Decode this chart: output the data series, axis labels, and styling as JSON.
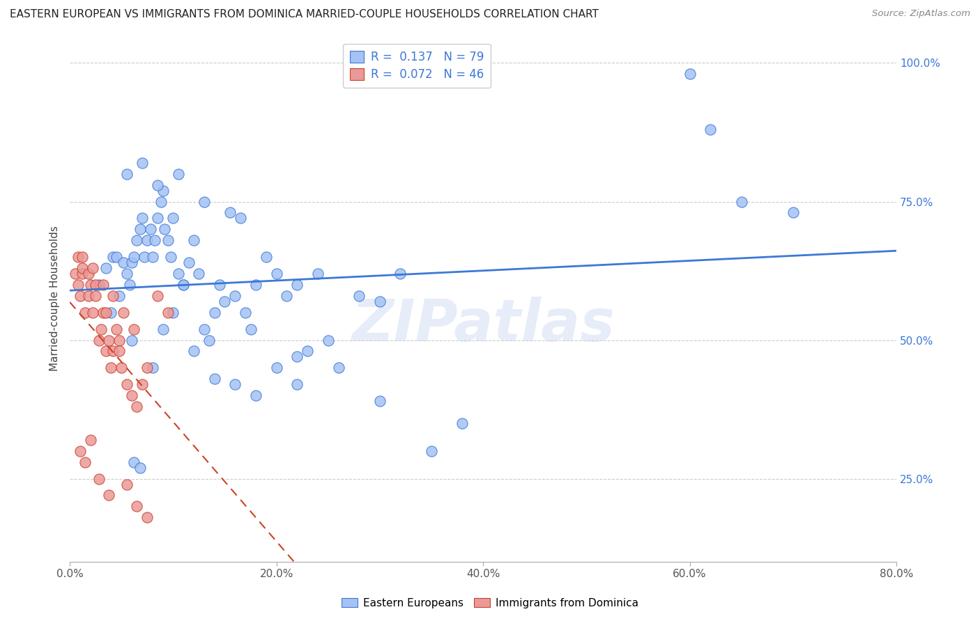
{
  "title": "EASTERN EUROPEAN VS IMMIGRANTS FROM DOMINICA MARRIED-COUPLE HOUSEHOLDS CORRELATION CHART",
  "source": "Source: ZipAtlas.com",
  "ylabel_label": "Married-couple Households",
  "legend_label1": "Eastern Europeans",
  "legend_label2": "Immigrants from Dominica",
  "R1": "0.137",
  "N1": "79",
  "R2": "0.072",
  "N2": "46",
  "color_blue": "#a4c2f4",
  "color_pink": "#ea9999",
  "color_line_blue": "#3c78d8",
  "color_line_pink": "#cc4125",
  "watermark": "ZIPatlas",
  "blue_x": [
    0.028,
    0.035,
    0.042,
    0.045,
    0.048,
    0.052,
    0.055,
    0.058,
    0.06,
    0.062,
    0.065,
    0.068,
    0.07,
    0.072,
    0.075,
    0.078,
    0.08,
    0.082,
    0.085,
    0.088,
    0.09,
    0.092,
    0.095,
    0.098,
    0.1,
    0.105,
    0.11,
    0.115,
    0.12,
    0.125,
    0.13,
    0.135,
    0.14,
    0.145,
    0.15,
    0.16,
    0.17,
    0.175,
    0.18,
    0.19,
    0.2,
    0.21,
    0.22,
    0.23,
    0.24,
    0.25,
    0.28,
    0.3,
    0.32,
    0.35,
    0.04,
    0.06,
    0.08,
    0.1,
    0.12,
    0.14,
    0.16,
    0.18,
    0.2,
    0.22,
    0.055,
    0.07,
    0.085,
    0.105,
    0.13,
    0.155,
    0.165,
    0.22,
    0.26,
    0.3,
    0.062,
    0.068,
    0.09,
    0.11,
    0.38,
    0.6,
    0.62,
    0.65,
    0.7
  ],
  "blue_y": [
    0.6,
    0.63,
    0.65,
    0.65,
    0.58,
    0.64,
    0.62,
    0.6,
    0.64,
    0.65,
    0.68,
    0.7,
    0.72,
    0.65,
    0.68,
    0.7,
    0.65,
    0.68,
    0.72,
    0.75,
    0.77,
    0.7,
    0.68,
    0.65,
    0.72,
    0.62,
    0.6,
    0.64,
    0.68,
    0.62,
    0.52,
    0.5,
    0.55,
    0.6,
    0.57,
    0.58,
    0.55,
    0.52,
    0.6,
    0.65,
    0.62,
    0.58,
    0.47,
    0.48,
    0.62,
    0.5,
    0.58,
    0.57,
    0.62,
    0.3,
    0.55,
    0.5,
    0.45,
    0.55,
    0.48,
    0.43,
    0.42,
    0.4,
    0.45,
    0.42,
    0.8,
    0.82,
    0.78,
    0.8,
    0.75,
    0.73,
    0.72,
    0.6,
    0.45,
    0.39,
    0.28,
    0.27,
    0.52,
    0.6,
    0.35,
    0.98,
    0.88,
    0.75,
    0.73
  ],
  "pink_x": [
    0.005,
    0.008,
    0.01,
    0.012,
    0.015,
    0.018,
    0.02,
    0.022,
    0.025,
    0.028,
    0.03,
    0.032,
    0.035,
    0.038,
    0.04,
    0.042,
    0.045,
    0.048,
    0.05,
    0.055,
    0.06,
    0.065,
    0.07,
    0.075,
    0.008,
    0.012,
    0.018,
    0.025,
    0.035,
    0.048,
    0.01,
    0.015,
    0.02,
    0.028,
    0.038,
    0.055,
    0.065,
    0.075,
    0.085,
    0.095,
    0.012,
    0.022,
    0.032,
    0.042,
    0.052,
    0.062
  ],
  "pink_y": [
    0.62,
    0.6,
    0.58,
    0.62,
    0.55,
    0.58,
    0.6,
    0.55,
    0.58,
    0.5,
    0.52,
    0.55,
    0.48,
    0.5,
    0.45,
    0.48,
    0.52,
    0.5,
    0.45,
    0.42,
    0.4,
    0.38,
    0.42,
    0.45,
    0.65,
    0.63,
    0.62,
    0.6,
    0.55,
    0.48,
    0.3,
    0.28,
    0.32,
    0.25,
    0.22,
    0.24,
    0.2,
    0.18,
    0.58,
    0.55,
    0.65,
    0.63,
    0.6,
    0.58,
    0.55,
    0.52
  ],
  "xlim": [
    0.0,
    0.8
  ],
  "ylim": [
    0.1,
    1.05
  ],
  "xticks": [
    0.0,
    0.2,
    0.4,
    0.6,
    0.8
  ],
  "yticks": [
    0.25,
    0.5,
    0.75,
    1.0
  ],
  "xticklabels": [
    "0.0%",
    "20.0%",
    "40.0%",
    "60.0%",
    "80.0%"
  ],
  "yticklabels": [
    "25.0%",
    "50.0%",
    "75.0%",
    "100.0%"
  ]
}
